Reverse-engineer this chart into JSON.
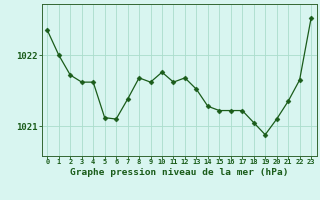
{
  "x": [
    0,
    1,
    2,
    3,
    4,
    5,
    6,
    7,
    8,
    9,
    10,
    11,
    12,
    13,
    14,
    15,
    16,
    17,
    18,
    19,
    20,
    21,
    22,
    23
  ],
  "y": [
    1022.35,
    1022.0,
    1021.72,
    1021.62,
    1021.62,
    1021.12,
    1021.1,
    1021.38,
    1021.68,
    1021.62,
    1021.76,
    1021.62,
    1021.68,
    1021.52,
    1021.28,
    1021.22,
    1021.22,
    1021.22,
    1021.05,
    1020.88,
    1021.1,
    1021.35,
    1021.65,
    1022.52
  ],
  "line_color": "#1a5c1a",
  "marker": "D",
  "marker_size": 2.5,
  "bg_color": "#d8f5f0",
  "grid_color": "#aaddcc",
  "xlabel": "Graphe pression niveau de la mer (hPa)",
  "xlabel_color": "#1a5c1a",
  "ytick_labels": [
    "1021",
    "1022"
  ],
  "ytick_values": [
    1021.0,
    1022.0
  ],
  "ylim": [
    1020.58,
    1022.72
  ],
  "xlim": [
    -0.5,
    23.5
  ],
  "tick_color": "#1a5c1a",
  "axis_color": "#336633",
  "xtick_fontsize": 5.0,
  "ytick_fontsize": 6.5,
  "xlabel_fontsize": 6.8
}
